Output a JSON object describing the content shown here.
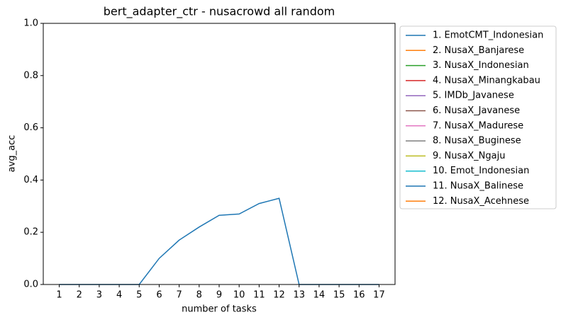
{
  "chart_data": {
    "type": "line",
    "title": "bert_adapter_ctr - nusacrowd all random",
    "xlabel": "number of tasks",
    "ylabel": "avg_acc",
    "x": [
      1,
      2,
      3,
      4,
      5,
      6,
      7,
      8,
      9,
      10,
      11,
      12,
      13,
      14,
      15,
      16,
      17
    ],
    "xlim": [
      0.2,
      17.8
    ],
    "xticks": [
      1,
      2,
      3,
      4,
      5,
      6,
      7,
      8,
      9,
      10,
      11,
      12,
      13,
      14,
      15,
      16,
      17
    ],
    "ylim": [
      0,
      1
    ],
    "yticks": [
      {
        "value": 0,
        "label": "0.0"
      },
      {
        "value": 0.2,
        "label": "0.2"
      },
      {
        "value": 0.4,
        "label": "0.4"
      },
      {
        "value": 0.6,
        "label": "0.6"
      },
      {
        "value": 0.8,
        "label": "0.8"
      },
      {
        "value": 1,
        "label": "1.0"
      }
    ],
    "legend": "outside right",
    "series": [
      {
        "name": "1. EmotCMT_Indonesian",
        "color": "#1f77b4",
        "values": [
          0,
          0,
          0,
          0,
          0,
          0.1,
          0.17,
          0.22,
          0.265,
          0.27,
          0.31,
          0.33,
          0,
          0,
          0,
          0,
          0
        ]
      },
      {
        "name": "2. NusaX_Banjarese",
        "color": "#ff7f0e",
        "values": [
          null,
          null,
          null,
          null,
          null,
          null,
          null,
          null,
          null,
          null,
          null,
          null,
          null,
          null,
          null,
          null,
          null
        ]
      },
      {
        "name": "3. NusaX_Indonesian",
        "color": "#2ca02c",
        "values": [
          null,
          null,
          null,
          null,
          null,
          null,
          null,
          null,
          null,
          null,
          null,
          null,
          null,
          null,
          null,
          null,
          null
        ]
      },
      {
        "name": "4. NusaX_Minangkabau",
        "color": "#d62728",
        "values": [
          null,
          null,
          null,
          null,
          null,
          null,
          null,
          null,
          null,
          null,
          null,
          null,
          null,
          null,
          null,
          null,
          null
        ]
      },
      {
        "name": "5. IMDb_Javanese",
        "color": "#9467bd",
        "values": [
          null,
          null,
          null,
          null,
          null,
          null,
          null,
          null,
          null,
          null,
          null,
          null,
          null,
          null,
          null,
          null,
          null
        ]
      },
      {
        "name": "6. NusaX_Javanese",
        "color": "#8c564b",
        "values": [
          null,
          null,
          null,
          null,
          null,
          null,
          null,
          null,
          null,
          null,
          null,
          null,
          null,
          null,
          null,
          null,
          null
        ]
      },
      {
        "name": "7. NusaX_Madurese",
        "color": "#e377c2",
        "values": [
          null,
          null,
          null,
          null,
          null,
          null,
          null,
          null,
          null,
          null,
          null,
          null,
          null,
          null,
          null,
          null,
          null
        ]
      },
      {
        "name": "8. NusaX_Buginese",
        "color": "#7f7f7f",
        "values": [
          null,
          null,
          null,
          null,
          null,
          null,
          null,
          null,
          null,
          null,
          null,
          null,
          null,
          null,
          null,
          null,
          null
        ]
      },
      {
        "name": "9. NusaX_Ngaju",
        "color": "#bcbd22",
        "values": [
          null,
          null,
          null,
          null,
          null,
          null,
          null,
          null,
          null,
          null,
          null,
          null,
          null,
          null,
          null,
          null,
          null
        ]
      },
      {
        "name": "10. Emot_Indonesian",
        "color": "#17becf",
        "values": [
          null,
          null,
          null,
          null,
          null,
          null,
          null,
          null,
          null,
          null,
          null,
          null,
          null,
          null,
          null,
          null,
          null
        ]
      },
      {
        "name": "11. NusaX_Balinese",
        "color": "#1f77b4",
        "values": [
          null,
          null,
          null,
          null,
          null,
          null,
          null,
          null,
          null,
          null,
          null,
          null,
          null,
          null,
          null,
          null,
          null
        ]
      },
      {
        "name": "12. NusaX_Acehnese",
        "color": "#ff7f0e",
        "values": [
          null,
          null,
          null,
          null,
          null,
          null,
          null,
          null,
          null,
          null,
          null,
          null,
          null,
          null,
          null,
          null,
          null
        ]
      }
    ]
  }
}
